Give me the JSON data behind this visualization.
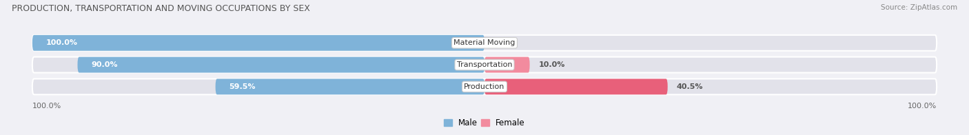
{
  "title": "PRODUCTION, TRANSPORTATION AND MOVING OCCUPATIONS BY SEX",
  "source": "Source: ZipAtlas.com",
  "categories": [
    "Material Moving",
    "Transportation",
    "Production"
  ],
  "male_pct": [
    100.0,
    90.0,
    59.5
  ],
  "female_pct": [
    0.0,
    10.0,
    40.5
  ],
  "male_color": "#7fb3d9",
  "female_color": "#f28b9e",
  "production_female_color": "#e8607a",
  "bar_bg_color": "#e2e2ea",
  "fig_bg_color": "#f0f0f5",
  "label_white": "#ffffff",
  "label_dark": "#555555",
  "axis_label_left": "100.0%",
  "axis_label_right": "100.0%",
  "legend_male": "Male",
  "legend_female": "Female",
  "figsize": [
    14.06,
    1.96
  ],
  "dpi": 100
}
